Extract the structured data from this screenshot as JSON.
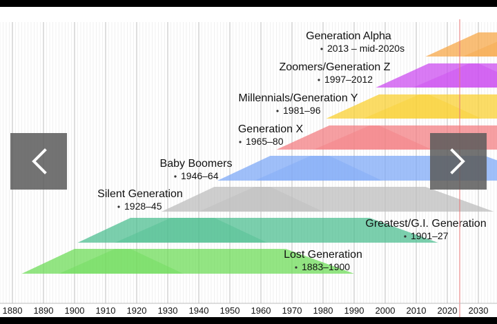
{
  "viewer": {
    "prev_icon": "chevron-left-icon",
    "next_icon": "chevron-right-icon"
  },
  "chart_data": {
    "type": "timeline",
    "x_axis": {
      "min": 1876,
      "max": 2036,
      "ticks": [
        1880,
        1890,
        1900,
        1910,
        1920,
        1930,
        1940,
        1950,
        1960,
        1970,
        1980,
        1990,
        2000,
        2010,
        2020,
        2030
      ]
    },
    "current_year_marker": 2024,
    "generations": [
      {
        "name": "Generation Alpha",
        "years": "2013 – mid-2020s",
        "start": 2013,
        "end": 2025,
        "color": "#f7a84a"
      },
      {
        "name": "Zoomers/Generation Z",
        "years": "1997–2012",
        "start": 1997,
        "end": 2012,
        "color": "#cc4ef0"
      },
      {
        "name": "Millennials/Generation Y",
        "years": "1981–96",
        "start": 1981,
        "end": 1996,
        "color": "#f9d033"
      },
      {
        "name": "Generation X",
        "years": "1965–80",
        "start": 1965,
        "end": 1980,
        "color": "#f37f83"
      },
      {
        "name": "Baby Boomers",
        "years": "1946–64",
        "start": 1946,
        "end": 1964,
        "color": "#7fa9f7"
      },
      {
        "name": "Silent Generation",
        "years": "1928–45",
        "start": 1928,
        "end": 1945,
        "color": "#bdbdbd"
      },
      {
        "name": "Greatest/G.I. Generation",
        "years": "1901–27",
        "start": 1901,
        "end": 1927,
        "color": "#4fbf91"
      },
      {
        "name": "Lost Generation",
        "years": "1883–1900",
        "start": 1883,
        "end": 1900,
        "color": "#6fdc5a"
      }
    ]
  }
}
